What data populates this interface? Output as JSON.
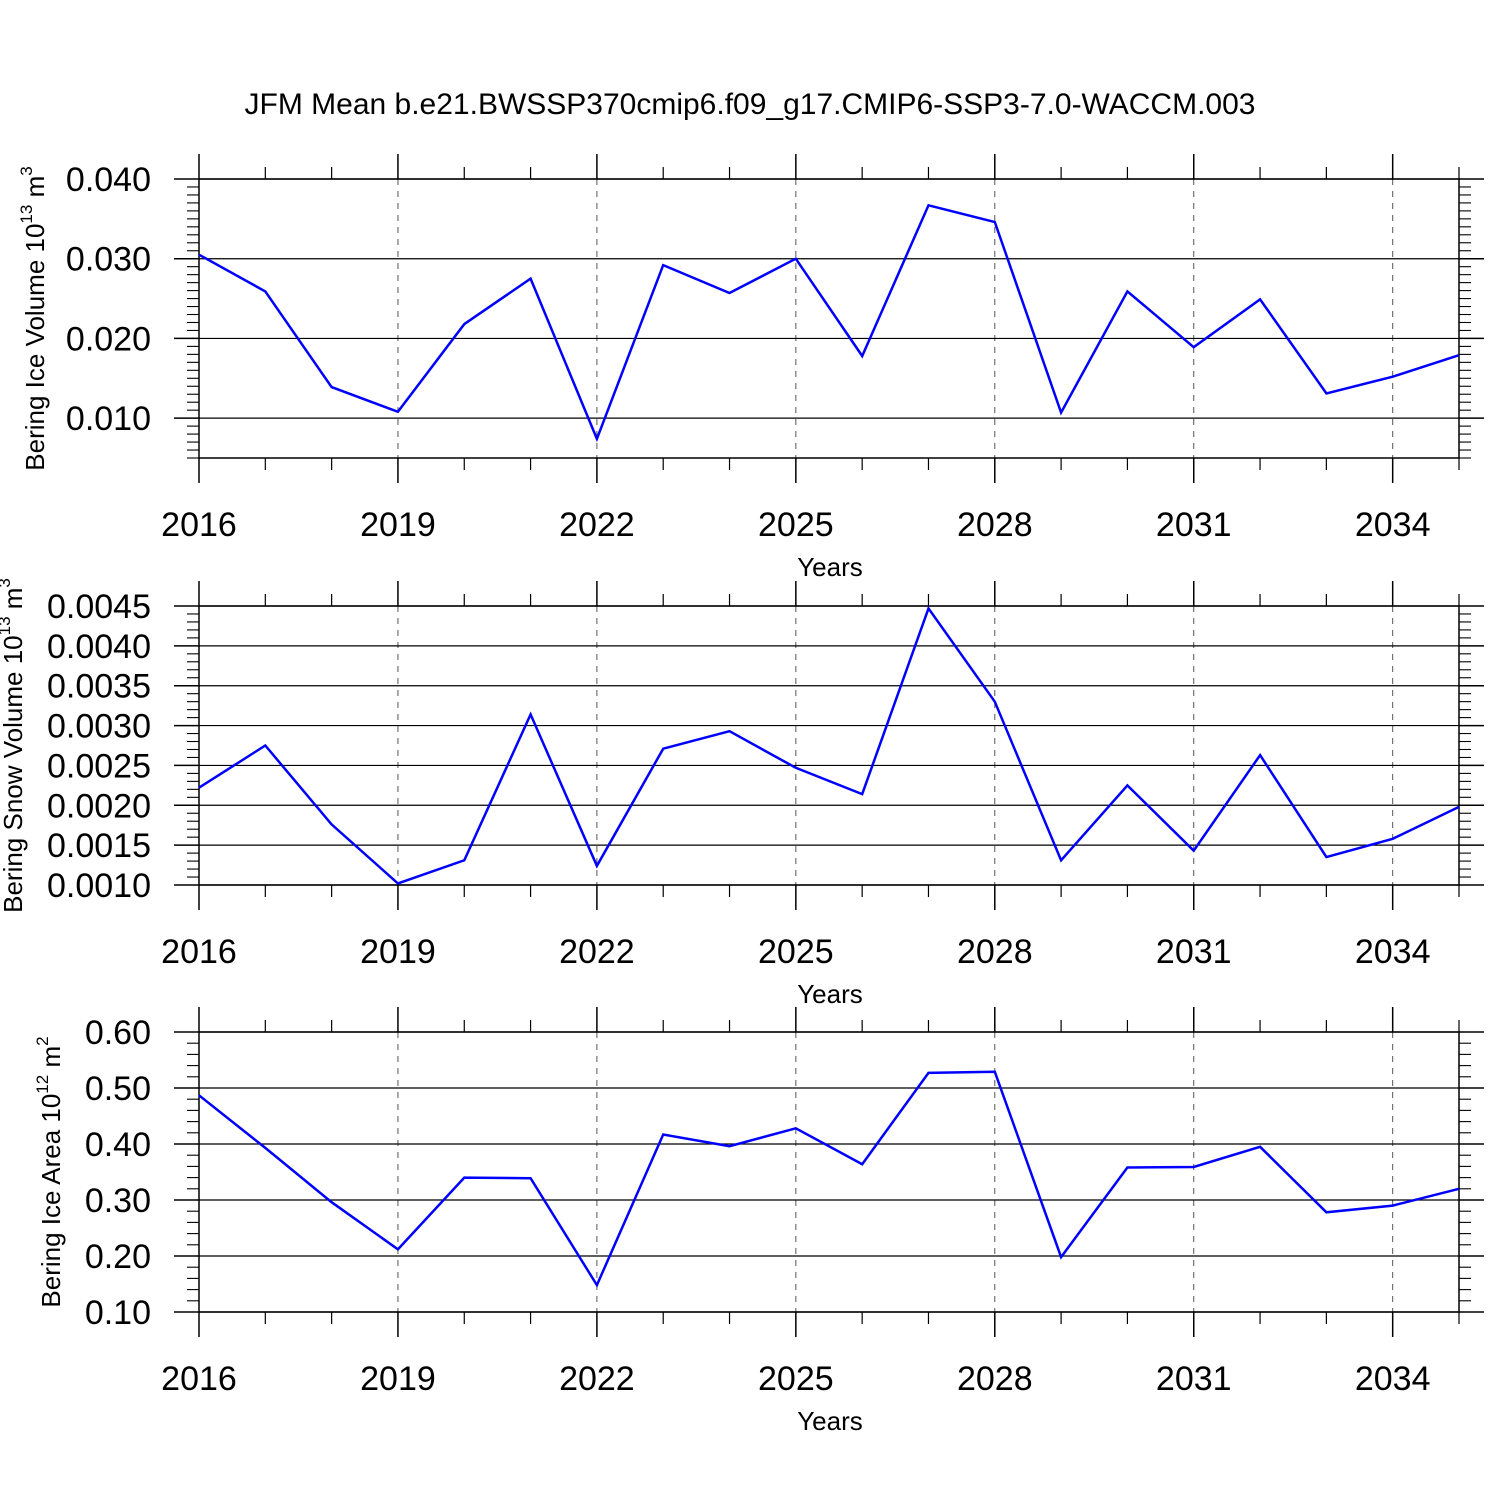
{
  "figure_title": "JFM Mean b.e21.BWSSP370cmip6.f09_g17.CMIP6-SSP3-7.0-WACCM.003",
  "colors": {
    "line": "#0000ff",
    "axes": "#000000",
    "grid": "#555555",
    "background": "#ffffff"
  },
  "chart_data": [
    {
      "type": "line",
      "ylabel": {
        "main": "Bering Ice Volume 10",
        "exponent": "13",
        "unit": " m",
        "unit_exponent": "3"
      },
      "xlabel": "Years",
      "x_ticks": [
        "2016",
        "2019",
        "2022",
        "2025",
        "2028",
        "2031",
        "2034"
      ],
      "y_ticks": [
        "0.010",
        "0.020",
        "0.030",
        "0.040"
      ],
      "xlim": [
        2016,
        2035
      ],
      "ylim": [
        0.005,
        0.04
      ],
      "grid": "vertical dashed at major x ticks",
      "x": [
        2016,
        2017,
        2018,
        2019,
        2020,
        2021,
        2022,
        2023,
        2024,
        2025,
        2026,
        2027,
        2028,
        2029,
        2030,
        2031,
        2032,
        2033,
        2034,
        2035
      ],
      "series": [
        {
          "values": [
            0.0305,
            0.0259,
            0.0139,
            0.0108,
            0.0218,
            0.0275,
            0.0074,
            0.0292,
            0.0257,
            0.03,
            0.0178,
            0.0367,
            0.0346,
            0.0107,
            0.0259,
            0.0189,
            0.0249,
            0.0131,
            0.0152,
            0.0179
          ]
        }
      ]
    },
    {
      "type": "line",
      "ylabel": {
        "main": "Bering Snow Volume 10",
        "exponent": "13",
        "unit": " m",
        "unit_exponent": "3"
      },
      "xlabel": "Years",
      "x_ticks": [
        "2016",
        "2019",
        "2022",
        "2025",
        "2028",
        "2031",
        "2034"
      ],
      "y_ticks": [
        "0.0010",
        "0.0015",
        "0.0020",
        "0.0025",
        "0.0030",
        "0.0035",
        "0.0040",
        "0.0045"
      ],
      "xlim": [
        2016,
        2035
      ],
      "ylim": [
        0.001,
        0.0045
      ],
      "grid": "vertical dashed at major x ticks",
      "x": [
        2016,
        2017,
        2018,
        2019,
        2020,
        2021,
        2022,
        2023,
        2024,
        2025,
        2026,
        2027,
        2028,
        2029,
        2030,
        2031,
        2032,
        2033,
        2034,
        2035
      ],
      "series": [
        {
          "values": [
            0.00222,
            0.00275,
            0.00176,
            0.00102,
            0.00131,
            0.00314,
            0.00124,
            0.00271,
            0.00293,
            0.00247,
            0.00214,
            0.00447,
            0.0033,
            0.00131,
            0.00225,
            0.00143,
            0.00263,
            0.00135,
            0.00158,
            0.00198
          ]
        }
      ]
    },
    {
      "type": "line",
      "ylabel": {
        "main": "Bering Ice Area 10",
        "exponent": "12",
        "unit": " m",
        "unit_exponent": "2"
      },
      "xlabel": "Years",
      "x_ticks": [
        "2016",
        "2019",
        "2022",
        "2025",
        "2028",
        "2031",
        "2034"
      ],
      "y_ticks": [
        "0.10",
        "0.20",
        "0.30",
        "0.40",
        "0.50",
        "0.60"
      ],
      "xlim": [
        2016,
        2035
      ],
      "ylim": [
        0.1,
        0.6
      ],
      "grid": "vertical dashed at major x ticks",
      "x": [
        2016,
        2017,
        2018,
        2019,
        2020,
        2021,
        2022,
        2023,
        2024,
        2025,
        2026,
        2027,
        2028,
        2029,
        2030,
        2031,
        2032,
        2033,
        2034,
        2035
      ],
      "series": [
        {
          "values": [
            0.487,
            0.393,
            0.296,
            0.212,
            0.34,
            0.339,
            0.148,
            0.417,
            0.396,
            0.428,
            0.364,
            0.527,
            0.529,
            0.198,
            0.358,
            0.359,
            0.395,
            0.278,
            0.29,
            0.32
          ]
        }
      ]
    }
  ]
}
